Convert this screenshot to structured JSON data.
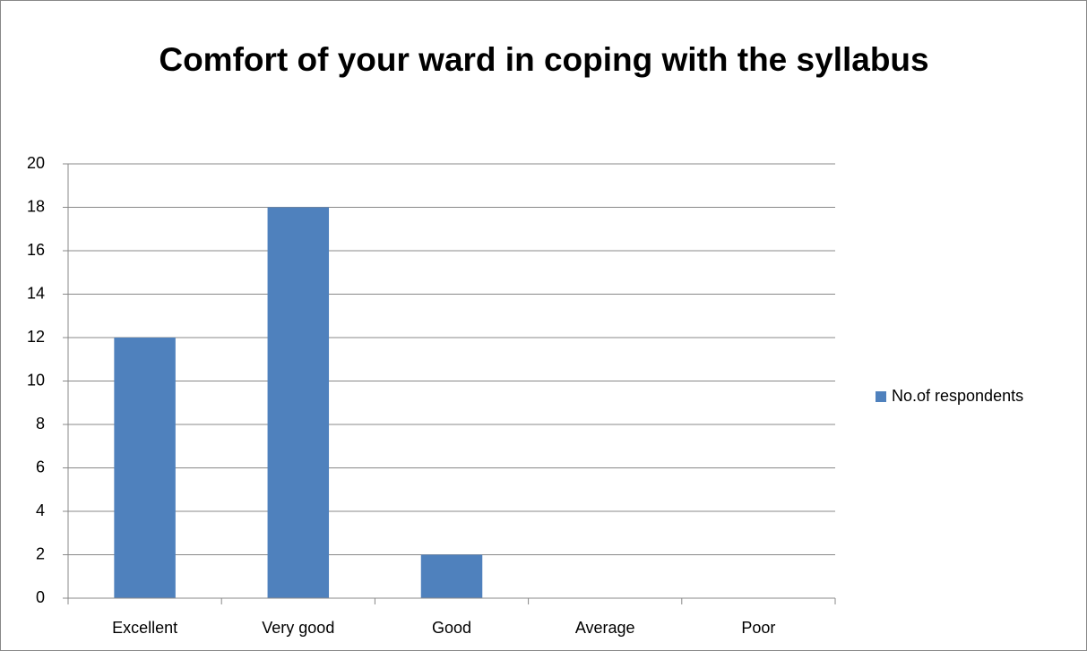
{
  "chart_data": {
    "type": "bar",
    "title": "Comfort of your ward in coping with the syllabus",
    "categories": [
      "Excellent",
      "Very good",
      "Good",
      "Average",
      "Poor"
    ],
    "series": [
      {
        "name": "No.of respondents",
        "color": "#4f81bd",
        "values": [
          12,
          18,
          2,
          0,
          0
        ]
      }
    ],
    "ylim": [
      0,
      20
    ],
    "yticks": [
      0,
      2,
      4,
      6,
      8,
      10,
      12,
      14,
      16,
      18,
      20
    ],
    "grid": true,
    "legend": "right"
  }
}
